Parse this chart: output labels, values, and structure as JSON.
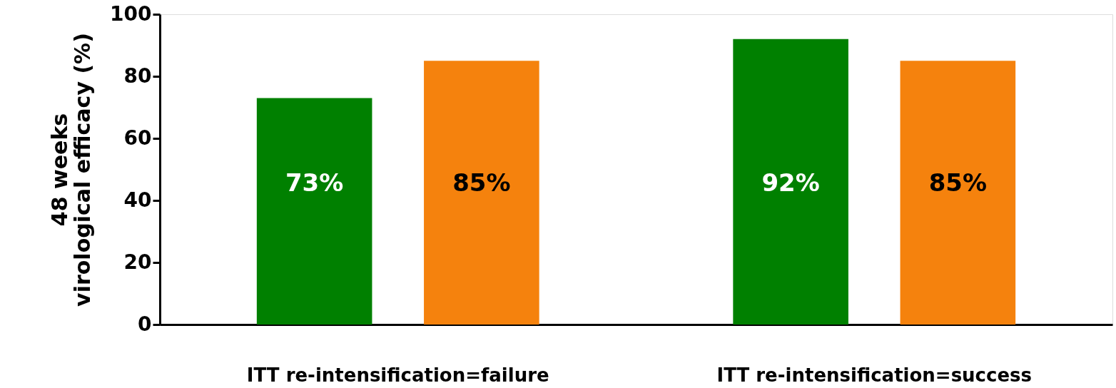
{
  "chart_data": {
    "type": "bar",
    "ylabel": "48 weeks\nvirological efficacy (%)",
    "categories": [
      "ITT re-intensification=failure",
      "ITT re-intensification=success"
    ],
    "series": [
      {
        "color": "#008000",
        "values": [
          73,
          92
        ],
        "value_labels": [
          "73%",
          "92%"
        ]
      },
      {
        "color": "#f5820d",
        "values": [
          85,
          85
        ],
        "value_labels": [
          "85%",
          "85%"
        ]
      }
    ],
    "ylim": [
      0,
      100
    ],
    "yticks": [
      0,
      20,
      40,
      60,
      80,
      100
    ],
    "grid": false
  }
}
